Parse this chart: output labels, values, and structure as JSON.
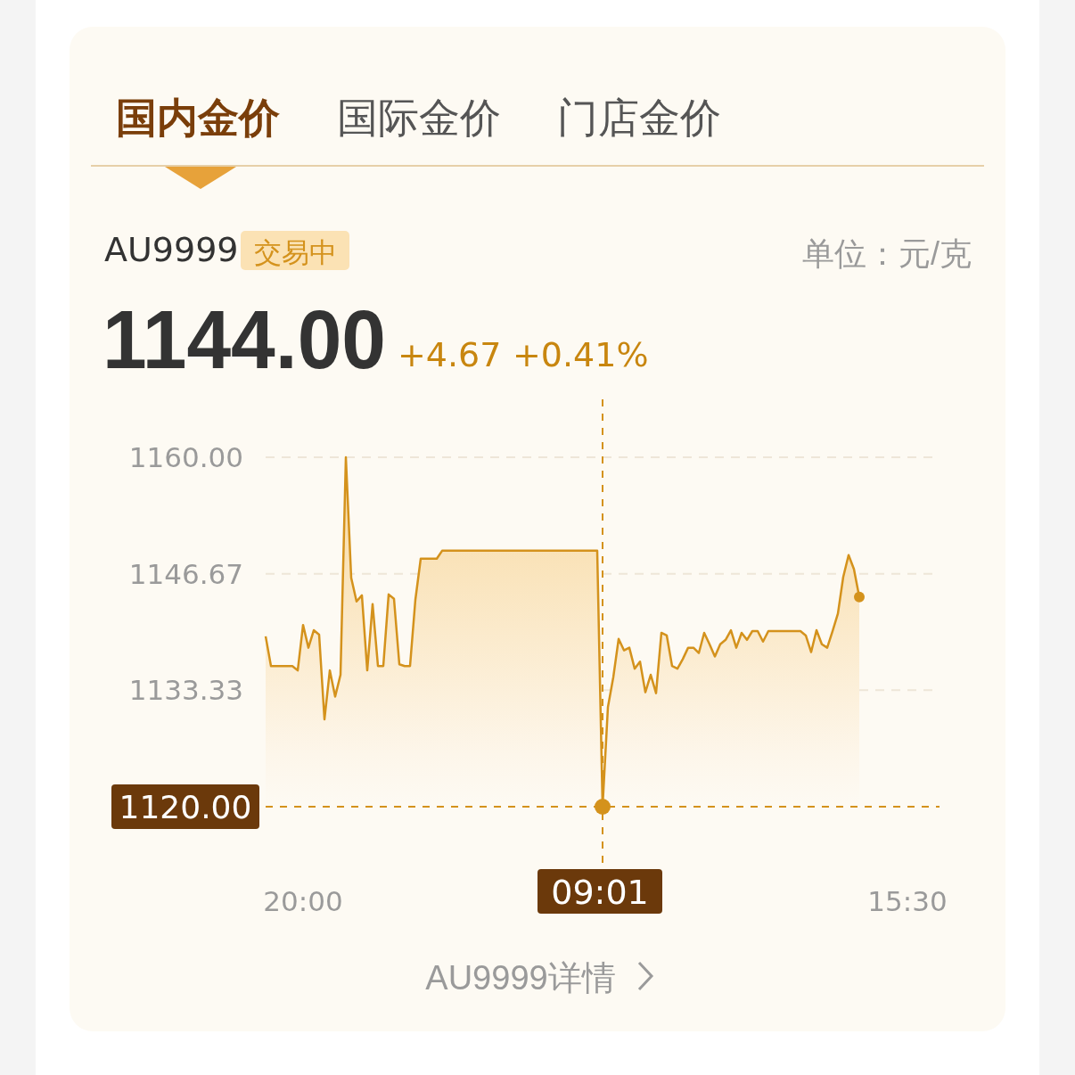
{
  "chart_data": {
    "type": "area",
    "title": "AU9999",
    "annotations": [
      "国内金价",
      "国际金价",
      "门店金价",
      "交易中",
      "1144.00",
      "+4.67",
      "+0.41%",
      "AU9999详情",
      "单位：元/克"
    ],
    "categories": [
      null,
      null,
      null,
      null,
      null,
      null,
      null,
      "20:00",
      null,
      null,
      null,
      null,
      null,
      null,
      null,
      null,
      null,
      null,
      null,
      null,
      null,
      null,
      null,
      null,
      null,
      null,
      null,
      null,
      null,
      null,
      null,
      null,
      null,
      null,
      null,
      null,
      null,
      null,
      null,
      null,
      null,
      null,
      null,
      null,
      null,
      null,
      null,
      null,
      null,
      null,
      null,
      null,
      null,
      null,
      null,
      null,
      null,
      null,
      null,
      null,
      null,
      null,
      null,
      "09:01",
      null,
      null,
      null,
      null,
      null,
      null,
      null,
      null,
      null,
      null,
      null,
      null,
      null,
      null,
      null,
      null,
      null,
      null,
      null,
      null,
      null,
      null,
      null,
      null,
      null,
      null,
      null,
      null,
      null,
      null,
      null,
      null,
      null,
      null,
      null,
      null,
      null,
      null,
      null,
      null,
      null,
      null,
      null,
      null,
      null,
      null,
      null,
      null,
      null,
      null,
      null,
      null,
      null,
      null,
      null,
      null,
      "15:30",
      null,
      null,
      null,
      null,
      null,
      null
    ],
    "series": [
      {
        "color": "#d4921c",
        "values": [
          1139.5,
          1136.1,
          1136.1,
          1136.1,
          1136.1,
          1136.1,
          1135.6,
          1140.8,
          1138.2,
          1140.2,
          1139.7,
          1130.0,
          1135.6,
          1132.6,
          1135.1,
          1160.0,
          1146.2,
          1143.5,
          1144.2,
          1135.6,
          1143.2,
          1136.1,
          1136.1,
          1144.3,
          1143.8,
          1136.3,
          1136.1,
          1136.1,
          1143.7,
          1148.4,
          1148.4,
          1148.4,
          1148.4,
          1149.3,
          1149.3,
          1149.3,
          1149.3,
          1149.3,
          1149.3,
          1149.3,
          1149.3,
          1149.3,
          1149.3,
          1149.3,
          1149.3,
          1149.3,
          1149.3,
          1149.3,
          1149.3,
          1149.3,
          1149.3,
          1149.3,
          1149.3,
          1149.3,
          1149.3,
          1149.3,
          1149.3,
          1149.3,
          1149.3,
          1149.3,
          1149.3,
          1149.3,
          1149.3,
          1120.0,
          1131.4,
          1134.8,
          1139.2,
          1137.9,
          1138.2,
          1135.8,
          1136.6,
          1133.1,
          1135.1,
          1133.0,
          1139.9,
          1139.6,
          1136.1,
          1135.8,
          1136.9,
          1138.2,
          1138.2,
          1137.6,
          1139.9,
          1138.6,
          1137.2,
          1138.6,
          1139.1,
          1140.2,
          1138.2,
          1139.9,
          1139.1,
          1140.1,
          1140.1,
          1138.9,
          1140.1,
          1140.1,
          1140.1,
          1140.1,
          1140.1,
          1140.1,
          1140.1,
          1139.6,
          1137.7,
          1140.2,
          1138.6,
          1138.2,
          1140.1,
          1142.1,
          1146.3,
          1148.8,
          1147.2,
          1144.0,
          null,
          null,
          null,
          null,
          null,
          null,
          null,
          null,
          null,
          null,
          null,
          null,
          null,
          null,
          null
        ]
      }
    ],
    "ylim": [
      1120,
      1160
    ],
    "yticks": [
      {
        "value": 1133.33,
        "label": "1133.33"
      },
      {
        "value": 1146.67,
        "label": "1146.67"
      },
      {
        "value": 1160,
        "label": "1160.00"
      }
    ],
    "ref_lines": [
      {
        "axis": "y",
        "value": 1120,
        "label": "1120.00",
        "color": "#d4921c",
        "line_style": "dashed"
      },
      {
        "axis": "x",
        "value": "09:01",
        "color": "#d4921c",
        "line_style": "dashed"
      }
    ],
    "grid": "y"
  }
}
